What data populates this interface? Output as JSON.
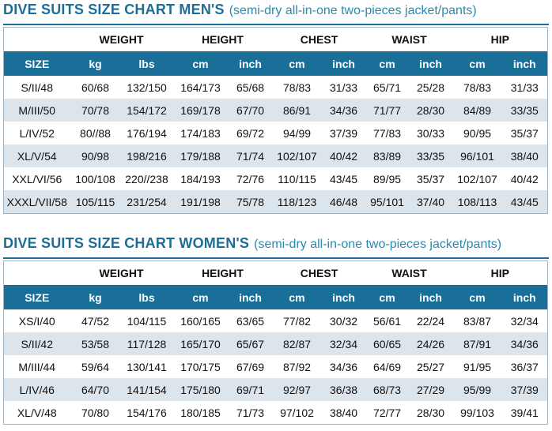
{
  "men": {
    "title": "DIVE SUITS SIZE CHART MEN'S",
    "subtitle": "(semi-dry all-in-one two-pieces jacket/pants)",
    "groups": [
      "WEIGHT",
      "HEIGHT",
      "CHEST",
      "WAIST",
      "HIP"
    ],
    "columns": [
      "SIZE",
      "kg",
      "lbs",
      "cm",
      "inch",
      "cm",
      "inch",
      "cm",
      "inch",
      "cm",
      "inch"
    ],
    "rows": [
      [
        "S/II/48",
        "60/68",
        "132/150",
        "164/173",
        "65/68",
        "78/83",
        "31/33",
        "65/71",
        "25/28",
        "78/83",
        "31/33"
      ],
      [
        "M/III/50",
        "70/78",
        "154/172",
        "169/178",
        "67/70",
        "86/91",
        "34/36",
        "71/77",
        "28/30",
        "84/89",
        "33/35"
      ],
      [
        "L/IV/52",
        "80//88",
        "176/194",
        "174/183",
        "69/72",
        "94/99",
        "37/39",
        "77/83",
        "30/33",
        "90/95",
        "35/37"
      ],
      [
        "XL/V/54",
        "90/98",
        "198/216",
        "179/188",
        "71/74",
        "102/107",
        "40/42",
        "83/89",
        "33/35",
        "96/101",
        "38/40"
      ],
      [
        "XXL/VI/56",
        "100/108",
        "220//238",
        "184/193",
        "72/76",
        "110/115",
        "43/45",
        "89/95",
        "35/37",
        "102/107",
        "40/42"
      ],
      [
        "XXXL/VII/58",
        "105/115",
        "231/254",
        "191/198",
        "75/78",
        "118/123",
        "46/48",
        "95/101",
        "37/40",
        "108/113",
        "43/45"
      ]
    ]
  },
  "women": {
    "title": "DIVE SUITS SIZE CHART WOMEN'S",
    "subtitle": "(semi-dry all-in-one two-pieces jacket/pants)",
    "groups": [
      "WEIGHT",
      "HEIGHT",
      "CHEST",
      "WAIST",
      "HIP"
    ],
    "columns": [
      "SIZE",
      "kg",
      "lbs",
      "cm",
      "inch",
      "cm",
      "inch",
      "cm",
      "inch",
      "cm",
      "inch"
    ],
    "rows": [
      [
        "XS/I/40",
        "47/52",
        "104/115",
        "160/165",
        "63/65",
        "77/82",
        "30/32",
        "56/61",
        "22/24",
        "83/87",
        "32/34"
      ],
      [
        "S/II/42",
        "53/58",
        "117/128",
        "165/170",
        "65/67",
        "82/87",
        "32/34",
        "60/65",
        "24/26",
        "87/91",
        "34/36"
      ],
      [
        "M/III/44",
        "59/64",
        "130/141",
        "170/175",
        "67/69",
        "87/92",
        "34/36",
        "64/69",
        "25/27",
        "91/95",
        "36/37"
      ],
      [
        "L/IV/46",
        "64/70",
        "141/154",
        "175/180",
        "69/71",
        "92/97",
        "36/38",
        "68/73",
        "27/29",
        "95/99",
        "37/39"
      ],
      [
        "XL/V/48",
        "70/80",
        "154/176",
        "180/185",
        "71/73",
        "97/102",
        "38/40",
        "72/77",
        "28/30",
        "99/103",
        "39/41"
      ]
    ]
  }
}
